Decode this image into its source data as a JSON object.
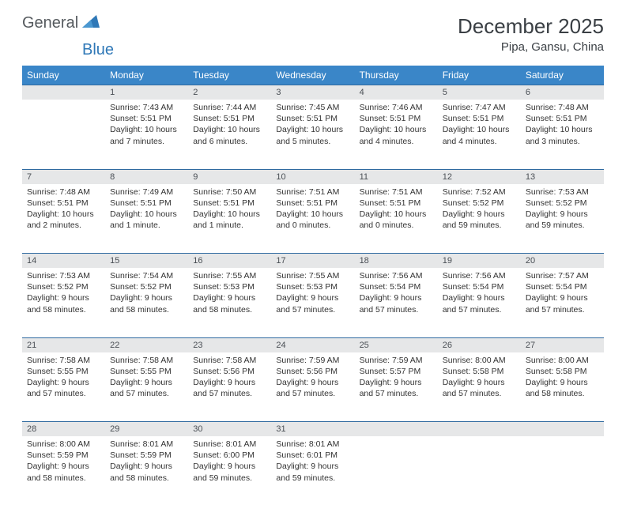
{
  "logo": {
    "part1": "General",
    "part2": "Blue"
  },
  "title": "December 2025",
  "location": "Pipa, Gansu, China",
  "colors": {
    "header_bg": "#3a86c8",
    "header_text": "#ffffff",
    "daynum_bg": "#e6e7e8",
    "rule": "#2f6aa0",
    "body_text": "#333333",
    "title_text": "#3a3f44",
    "logo_gray": "#555a5e",
    "logo_blue": "#2f78b7"
  },
  "daysOfWeek": [
    "Sunday",
    "Monday",
    "Tuesday",
    "Wednesday",
    "Thursday",
    "Friday",
    "Saturday"
  ],
  "weeks": [
    [
      null,
      {
        "n": "1",
        "sr": "7:43 AM",
        "ss": "5:51 PM",
        "dl": "10 hours and 7 minutes."
      },
      {
        "n": "2",
        "sr": "7:44 AM",
        "ss": "5:51 PM",
        "dl": "10 hours and 6 minutes."
      },
      {
        "n": "3",
        "sr": "7:45 AM",
        "ss": "5:51 PM",
        "dl": "10 hours and 5 minutes."
      },
      {
        "n": "4",
        "sr": "7:46 AM",
        "ss": "5:51 PM",
        "dl": "10 hours and 4 minutes."
      },
      {
        "n": "5",
        "sr": "7:47 AM",
        "ss": "5:51 PM",
        "dl": "10 hours and 4 minutes."
      },
      {
        "n": "6",
        "sr": "7:48 AM",
        "ss": "5:51 PM",
        "dl": "10 hours and 3 minutes."
      }
    ],
    [
      {
        "n": "7",
        "sr": "7:48 AM",
        "ss": "5:51 PM",
        "dl": "10 hours and 2 minutes."
      },
      {
        "n": "8",
        "sr": "7:49 AM",
        "ss": "5:51 PM",
        "dl": "10 hours and 1 minute."
      },
      {
        "n": "9",
        "sr": "7:50 AM",
        "ss": "5:51 PM",
        "dl": "10 hours and 1 minute."
      },
      {
        "n": "10",
        "sr": "7:51 AM",
        "ss": "5:51 PM",
        "dl": "10 hours and 0 minutes."
      },
      {
        "n": "11",
        "sr": "7:51 AM",
        "ss": "5:51 PM",
        "dl": "10 hours and 0 minutes."
      },
      {
        "n": "12",
        "sr": "7:52 AM",
        "ss": "5:52 PM",
        "dl": "9 hours and 59 minutes."
      },
      {
        "n": "13",
        "sr": "7:53 AM",
        "ss": "5:52 PM",
        "dl": "9 hours and 59 minutes."
      }
    ],
    [
      {
        "n": "14",
        "sr": "7:53 AM",
        "ss": "5:52 PM",
        "dl": "9 hours and 58 minutes."
      },
      {
        "n": "15",
        "sr": "7:54 AM",
        "ss": "5:52 PM",
        "dl": "9 hours and 58 minutes."
      },
      {
        "n": "16",
        "sr": "7:55 AM",
        "ss": "5:53 PM",
        "dl": "9 hours and 58 minutes."
      },
      {
        "n": "17",
        "sr": "7:55 AM",
        "ss": "5:53 PM",
        "dl": "9 hours and 57 minutes."
      },
      {
        "n": "18",
        "sr": "7:56 AM",
        "ss": "5:54 PM",
        "dl": "9 hours and 57 minutes."
      },
      {
        "n": "19",
        "sr": "7:56 AM",
        "ss": "5:54 PM",
        "dl": "9 hours and 57 minutes."
      },
      {
        "n": "20",
        "sr": "7:57 AM",
        "ss": "5:54 PM",
        "dl": "9 hours and 57 minutes."
      }
    ],
    [
      {
        "n": "21",
        "sr": "7:58 AM",
        "ss": "5:55 PM",
        "dl": "9 hours and 57 minutes."
      },
      {
        "n": "22",
        "sr": "7:58 AM",
        "ss": "5:55 PM",
        "dl": "9 hours and 57 minutes."
      },
      {
        "n": "23",
        "sr": "7:58 AM",
        "ss": "5:56 PM",
        "dl": "9 hours and 57 minutes."
      },
      {
        "n": "24",
        "sr": "7:59 AM",
        "ss": "5:56 PM",
        "dl": "9 hours and 57 minutes."
      },
      {
        "n": "25",
        "sr": "7:59 AM",
        "ss": "5:57 PM",
        "dl": "9 hours and 57 minutes."
      },
      {
        "n": "26",
        "sr": "8:00 AM",
        "ss": "5:58 PM",
        "dl": "9 hours and 57 minutes."
      },
      {
        "n": "27",
        "sr": "8:00 AM",
        "ss": "5:58 PM",
        "dl": "9 hours and 58 minutes."
      }
    ],
    [
      {
        "n": "28",
        "sr": "8:00 AM",
        "ss": "5:59 PM",
        "dl": "9 hours and 58 minutes."
      },
      {
        "n": "29",
        "sr": "8:01 AM",
        "ss": "5:59 PM",
        "dl": "9 hours and 58 minutes."
      },
      {
        "n": "30",
        "sr": "8:01 AM",
        "ss": "6:00 PM",
        "dl": "9 hours and 59 minutes."
      },
      {
        "n": "31",
        "sr": "8:01 AM",
        "ss": "6:01 PM",
        "dl": "9 hours and 59 minutes."
      },
      null,
      null,
      null
    ]
  ],
  "labels": {
    "sunrise": "Sunrise:",
    "sunset": "Sunset:",
    "daylight": "Daylight:"
  }
}
